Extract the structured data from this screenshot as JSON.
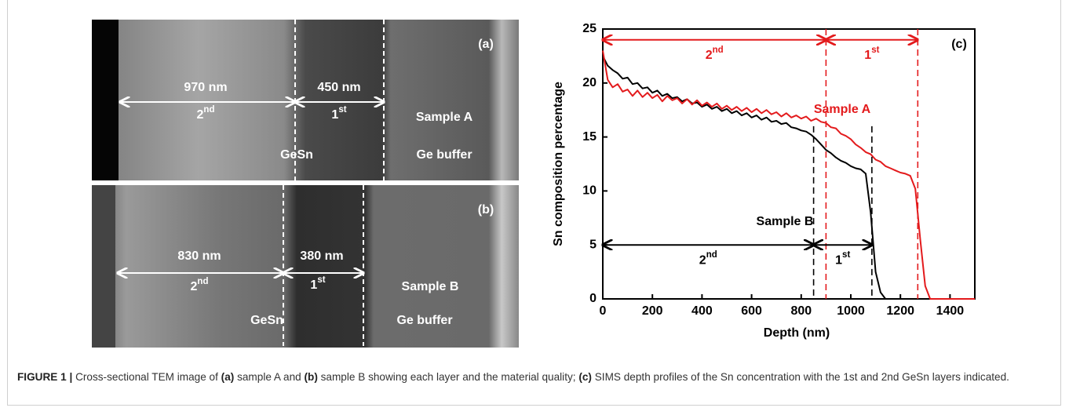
{
  "figure": {
    "panels": [
      {
        "tag": "(a)",
        "thickness": [
          "970 nm",
          "450 nm"
        ],
        "layers": [
          "2nd",
          "1st"
        ],
        "sample": "Sample A",
        "materials": [
          "GeSn",
          "Ge buffer"
        ]
      },
      {
        "tag": "(b)",
        "thickness": [
          "830 nm",
          "380 nm"
        ],
        "layers": [
          "2nd",
          "1st"
        ],
        "sample": "Sample B",
        "materials": [
          "GeSn",
          "Ge buffer"
        ]
      }
    ],
    "caption": [
      "FIGURE 1 |",
      "Cross-sectional TEM image of",
      "(a)",
      "sample A and",
      "(b)",
      "sample B showing each layer and the material quality;",
      "(c)",
      "SIMS depth profiles of the Sn concentration with the 1st and 2nd GeSn layers indicated."
    ]
  },
  "chart_data": {
    "type": "line",
    "tag": "(c)",
    "x_label": "Depth (nm)",
    "y_label": "Sn composition percentage",
    "xlim": [
      0,
      1500
    ],
    "ylim": [
      0,
      25
    ],
    "xticks": [
      0,
      200,
      400,
      600,
      800,
      1000,
      1200,
      1400
    ],
    "yticks": [
      0,
      5,
      10,
      15,
      20,
      25
    ],
    "x": [
      0,
      20,
      40,
      60,
      80,
      100,
      120,
      140,
      160,
      180,
      200,
      220,
      240,
      260,
      280,
      300,
      320,
      340,
      360,
      380,
      400,
      420,
      440,
      460,
      480,
      500,
      520,
      540,
      560,
      580,
      600,
      620,
      640,
      660,
      680,
      700,
      720,
      740,
      760,
      780,
      800,
      820,
      840,
      860,
      880,
      900,
      920,
      940,
      960,
      980,
      1000,
      1020,
      1040,
      1060,
      1080,
      1100,
      1120,
      1140,
      1160,
      1180,
      1200,
      1220,
      1240,
      1260,
      1280,
      1300,
      1320,
      1340,
      1360,
      1380,
      1400,
      1420,
      1440,
      1460,
      1480,
      1500
    ],
    "series": [
      {
        "name": "Sample B",
        "color": "#000000",
        "values": [
          22.5,
          21.6,
          21.2,
          20.9,
          20.4,
          20.5,
          19.9,
          20.0,
          19.5,
          19.6,
          19.1,
          19.3,
          18.8,
          19.0,
          18.6,
          18.7,
          18.3,
          18.5,
          18.1,
          18.2,
          17.8,
          18.0,
          17.6,
          17.8,
          17.4,
          17.6,
          17.2,
          17.4,
          17.0,
          17.2,
          16.8,
          17.0,
          16.6,
          16.8,
          16.4,
          16.5,
          16.2,
          16.3,
          15.9,
          15.8,
          15.6,
          15.5,
          15.2,
          14.8,
          14.3,
          13.8,
          13.5,
          13.1,
          12.8,
          12.6,
          12.3,
          12.1,
          12.0,
          11.6,
          8.0,
          2.5,
          0.6,
          0,
          0,
          0,
          0,
          0,
          0,
          0,
          0,
          0,
          0,
          0,
          0,
          0,
          0,
          0,
          0,
          0,
          0,
          0
        ]
      },
      {
        "name": "Sample A",
        "color": "#e31a1c",
        "values": [
          23,
          20.3,
          19.6,
          19.9,
          19.2,
          19.4,
          18.8,
          19.3,
          18.7,
          19.1,
          18.6,
          18.9,
          18.3,
          18.8,
          18.4,
          18.6,
          18.1,
          18.5,
          18.0,
          18.4,
          17.9,
          18.2,
          17.8,
          18.1,
          17.6,
          17.9,
          17.5,
          17.8,
          17.4,
          17.7,
          17.3,
          17.6,
          17.2,
          17.5,
          17.1,
          17.3,
          16.9,
          17.2,
          16.8,
          17.0,
          16.7,
          16.9,
          16.5,
          16.7,
          16.4,
          16.3,
          15.9,
          15.8,
          15.3,
          15.1,
          14.8,
          14.3,
          14.0,
          13.6,
          13.4,
          12.9,
          12.7,
          12.3,
          12.1,
          11.9,
          11.7,
          11.6,
          11.4,
          10.2,
          5.5,
          1.2,
          0,
          0,
          0,
          0,
          0,
          0,
          0,
          0,
          0,
          0
        ]
      }
    ],
    "boundaries": [
      {
        "color": "#e31a1c",
        "x": [
          0,
          900,
          1270
        ],
        "y": 24,
        "line_top": 25,
        "labels": [
          "2nd",
          "1st"
        ]
      },
      {
        "color": "#000000",
        "x": [
          0,
          850,
          1085
        ],
        "y": 5,
        "line_top": 16,
        "labels": [
          "2nd",
          "1st"
        ]
      }
    ]
  }
}
